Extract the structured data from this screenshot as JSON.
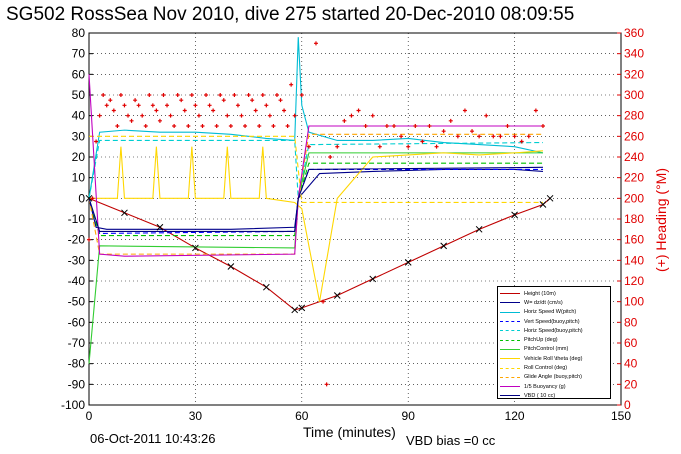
{
  "title": "SG502 RossSea Nov 2010, dive 275 started 20-Dec-2010 08:09:55",
  "footer": {
    "date": "06-Oct-2011 10:43:26",
    "vbd_bias": "VBD bias =0 cc"
  },
  "chart_data": {
    "type": "line",
    "xlabel": "Time (minutes)",
    "ylabel_right": "(+) Heading (°M)",
    "xlim": [
      0,
      150
    ],
    "ylim_left": [
      -100,
      80
    ],
    "ylim_right": [
      0,
      360
    ],
    "xticks": [
      "0",
      "30",
      "60",
      "90",
      "120",
      "150"
    ],
    "yticks_left": [
      "80",
      "70",
      "60",
      "50",
      "40",
      "30",
      "20",
      "10",
      "0",
      "-10",
      "-20",
      "-30",
      "-40",
      "-50",
      "-60",
      "-70",
      "-80",
      "-90",
      "-100"
    ],
    "yticks_right": [
      "360",
      "340",
      "320",
      "300",
      "280",
      "260",
      "240",
      "220",
      "200",
      "180",
      "160",
      "140",
      "120",
      "100",
      "80",
      "60",
      "40",
      "20",
      "0"
    ],
    "grid": true,
    "legend_position": "bottom-right",
    "series": [
      {
        "name": "Height (10m)",
        "color": "#c00000",
        "style": "solid",
        "x": [
          0,
          10,
          20,
          30,
          40,
          50,
          58,
          60,
          70,
          80,
          90,
          100,
          110,
          120,
          128,
          130
        ],
        "y": [
          0,
          -7,
          -14,
          -24,
          -33,
          -43,
          -54,
          -53,
          -47,
          -39,
          -31,
          -23,
          -15,
          -8,
          -3,
          0
        ]
      },
      {
        "name": "W= dz/dt (cm/s)",
        "color": "#00008b",
        "style": "solid",
        "x": [
          0,
          2,
          5,
          20,
          40,
          58,
          59,
          65,
          80,
          100,
          120,
          128
        ],
        "y": [
          0,
          -14,
          -15,
          -15,
          -15,
          -14,
          0,
          12,
          13,
          14,
          14,
          13
        ]
      },
      {
        "name": "Horiz Speed W(pitch)",
        "color": "#00bcd4",
        "style": "solid",
        "x": [
          0,
          3,
          10,
          20,
          30,
          40,
          50,
          58,
          59,
          60,
          62,
          70,
          80,
          90,
          100,
          110,
          120,
          128
        ],
        "y": [
          0,
          32,
          33,
          32,
          32,
          31,
          29,
          28,
          78,
          45,
          32,
          28,
          28,
          29,
          27,
          26,
          25,
          22
        ]
      },
      {
        "name": "Vert Speed(buoy,pitch)",
        "color": "#0000ff",
        "style": "dashed",
        "x": [
          0,
          3,
          58,
          59,
          62,
          128
        ],
        "y": [
          0,
          -17,
          -16,
          0,
          14,
          14
        ]
      },
      {
        "name": "Horiz Speed(buoy,pitch)",
        "color": "#00ced1",
        "style": "dashed",
        "x": [
          0,
          3,
          58,
          59,
          62,
          128
        ],
        "y": [
          0,
          28,
          28,
          0,
          26,
          27
        ]
      },
      {
        "name": "PitchUp (deg)",
        "color": "#00c000",
        "style": "dashed",
        "x": [
          0,
          3,
          58,
          59,
          62,
          128
        ],
        "y": [
          0,
          -18,
          -18,
          0,
          17,
          17
        ]
      },
      {
        "name": "PitchControl (mm)",
        "color": "#32cd32",
        "style": "solid",
        "x": [
          0,
          3,
          58,
          59,
          62,
          128
        ],
        "y": [
          -80,
          -23,
          -24,
          0,
          22,
          22
        ]
      },
      {
        "name": "Vehicle Roll \\theta (deg)",
        "color": "#ffd700",
        "style": "solid",
        "x": [
          0,
          4,
          8,
          9,
          10,
          18,
          19,
          20,
          28,
          29,
          30,
          38,
          39,
          40,
          48,
          49,
          50,
          58,
          60,
          65,
          70,
          80,
          90,
          100,
          110,
          120,
          128
        ],
        "y": [
          0,
          0,
          0,
          25,
          0,
          0,
          25,
          0,
          0,
          25,
          0,
          0,
          25,
          0,
          0,
          25,
          0,
          -2,
          -5,
          -50,
          0,
          20,
          21,
          22,
          21,
          22,
          23
        ]
      },
      {
        "name": "Roll Control (deg)",
        "color": "#ffd700",
        "style": "dashed",
        "x": [
          0,
          58,
          60,
          128
        ],
        "y": [
          30,
          30,
          -2,
          -2
        ]
      },
      {
        "name": "Glide Angle (buoy,pitch)",
        "color": "#ffa500",
        "style": "dashed",
        "x": [
          0,
          3,
          58,
          59,
          62,
          128
        ],
        "y": [
          0,
          -27,
          -27,
          0,
          31,
          31
        ]
      },
      {
        "name": "1/5 Buoyancy (g)",
        "color": "#c000c0",
        "style": "solid",
        "x": [
          0,
          3,
          10,
          58,
          59,
          62,
          128
        ],
        "y": [
          60,
          -27,
          -28,
          -27,
          0,
          35,
          35
        ]
      },
      {
        "name": "VBD ( 10 cc)",
        "color": "#000080",
        "style": "solid",
        "x": [
          0,
          3,
          58,
          59,
          62,
          128
        ],
        "y": [
          0,
          -16,
          -16,
          0,
          14,
          15
        ]
      }
    ],
    "heading_points": {
      "name": "(+) Heading (°M)",
      "color": "#e00000",
      "axis": "right",
      "x": [
        0,
        1,
        2,
        3,
        4,
        5,
        6,
        7,
        8,
        9,
        10,
        11,
        12,
        13,
        14,
        15,
        16,
        17,
        18,
        19,
        20,
        21,
        22,
        23,
        24,
        25,
        26,
        27,
        28,
        29,
        30,
        31,
        32,
        33,
        34,
        35,
        36,
        37,
        38,
        39,
        40,
        41,
        42,
        43,
        44,
        45,
        46,
        47,
        48,
        49,
        50,
        51,
        52,
        53,
        54,
        55,
        56,
        57,
        58,
        60,
        62,
        64,
        66,
        67,
        68,
        70,
        72,
        74,
        76,
        78,
        80,
        82,
        84,
        86,
        88,
        90,
        92,
        94,
        96,
        98,
        100,
        102,
        104,
        106,
        108,
        110,
        112,
        114,
        116,
        118,
        120,
        122,
        124,
        126,
        128
      ],
      "y": [
        160,
        200,
        255,
        280,
        300,
        290,
        295,
        285,
        270,
        300,
        290,
        280,
        275,
        295,
        290,
        280,
        270,
        300,
        290,
        285,
        275,
        300,
        290,
        280,
        270,
        300,
        295,
        285,
        270,
        300,
        290,
        280,
        270,
        300,
        290,
        285,
        270,
        300,
        295,
        280,
        270,
        300,
        290,
        280,
        270,
        300,
        295,
        285,
        270,
        300,
        290,
        280,
        270,
        300,
        295,
        285,
        270,
        310,
        280,
        300,
        250,
        350,
        100,
        20,
        240,
        250,
        275,
        280,
        285,
        270,
        280,
        250,
        270,
        270,
        260,
        250,
        270,
        255,
        270,
        250,
        265,
        275,
        260,
        285,
        265,
        260,
        280,
        260,
        260,
        270,
        260,
        255,
        260,
        285,
        270
      ]
    }
  }
}
